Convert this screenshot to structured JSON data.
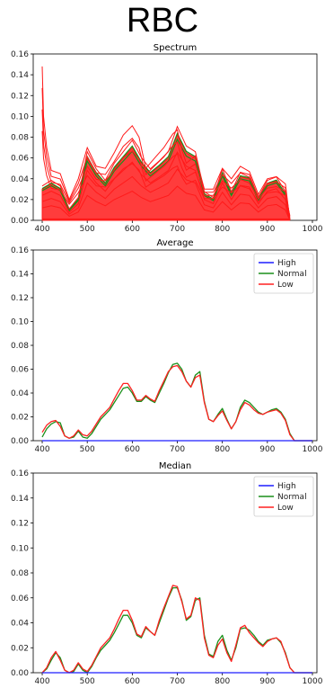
{
  "figure": {
    "title": "RBC"
  },
  "colors": {
    "High": "#1f1fff",
    "Normal": "#1a8f1a",
    "Low": "#ff2020",
    "spectrum_fill": "#ff1a1a"
  },
  "chart_data": [
    {
      "type": "line",
      "title": "Spectrum",
      "xlim": [
        380,
        1010
      ],
      "ylim": [
        0,
        0.16
      ],
      "xticks": [
        400,
        500,
        600,
        700,
        800,
        900,
        1000
      ],
      "yticks": [
        "0.00",
        "0.02",
        "0.04",
        "0.06",
        "0.08",
        "0.10",
        "0.12",
        "0.14",
        "0.16"
      ],
      "legend": null,
      "note_series": "many overlapping individual spectra (mostly red, some green)",
      "upper_envelope": {
        "x": [
          400,
          403,
          410,
          420,
          440,
          460,
          480,
          500,
          520,
          540,
          560,
          580,
          600,
          615,
          630,
          650,
          670,
          690,
          700,
          710,
          720,
          740,
          760,
          780,
          800,
          820,
          840,
          860,
          880,
          900,
          920,
          940,
          950
        ],
        "y": [
          0.148,
          0.1,
          0.07,
          0.048,
          0.045,
          0.02,
          0.04,
          0.07,
          0.052,
          0.05,
          0.065,
          0.082,
          0.091,
          0.08,
          0.05,
          0.06,
          0.07,
          0.083,
          0.087,
          0.068,
          0.055,
          0.062,
          0.03,
          0.03,
          0.05,
          0.04,
          0.052,
          0.047,
          0.025,
          0.04,
          0.042,
          0.035,
          0.0
        ]
      },
      "main_band": {
        "x": [
          400,
          420,
          440,
          460,
          480,
          500,
          520,
          540,
          560,
          580,
          600,
          620,
          640,
          660,
          680,
          700,
          720,
          740,
          760,
          780,
          800,
          820,
          840,
          860,
          880,
          900,
          920,
          940,
          950
        ],
        "y": [
          0.03,
          0.035,
          0.03,
          0.01,
          0.02,
          0.06,
          0.045,
          0.035,
          0.05,
          0.06,
          0.07,
          0.055,
          0.045,
          0.052,
          0.06,
          0.082,
          0.065,
          0.06,
          0.025,
          0.02,
          0.045,
          0.025,
          0.042,
          0.04,
          0.02,
          0.035,
          0.038,
          0.025,
          0.0
        ]
      }
    },
    {
      "type": "line",
      "title": "Average",
      "xlim": [
        380,
        1010
      ],
      "ylim": [
        0,
        0.16
      ],
      "xticks": [
        400,
        500,
        600,
        700,
        800,
        900,
        1000
      ],
      "yticks": [
        "0.00",
        "0.02",
        "0.04",
        "0.06",
        "0.08",
        "0.10",
        "0.12",
        "0.14",
        "0.16"
      ],
      "legend": "top-right",
      "series": [
        {
          "name": "High",
          "x": [
            400,
            1000
          ],
          "y": [
            0.0,
            0.0
          ]
        },
        {
          "name": "Normal",
          "x": [
            400,
            410,
            420,
            430,
            440,
            450,
            460,
            470,
            480,
            490,
            500,
            510,
            520,
            530,
            540,
            550,
            560,
            570,
            580,
            590,
            600,
            610,
            620,
            630,
            640,
            650,
            660,
            670,
            680,
            690,
            700,
            710,
            720,
            730,
            740,
            750,
            760,
            770,
            780,
            790,
            800,
            810,
            820,
            830,
            840,
            850,
            860,
            870,
            880,
            890,
            900,
            910,
            920,
            930,
            940,
            950,
            960,
            1000
          ],
          "y": [
            0.003,
            0.01,
            0.014,
            0.016,
            0.015,
            0.004,
            0.002,
            0.003,
            0.008,
            0.003,
            0.002,
            0.006,
            0.012,
            0.018,
            0.022,
            0.026,
            0.032,
            0.038,
            0.044,
            0.045,
            0.04,
            0.033,
            0.033,
            0.037,
            0.034,
            0.032,
            0.04,
            0.048,
            0.057,
            0.064,
            0.065,
            0.06,
            0.05,
            0.045,
            0.055,
            0.058,
            0.033,
            0.018,
            0.016,
            0.022,
            0.027,
            0.018,
            0.01,
            0.016,
            0.028,
            0.034,
            0.032,
            0.028,
            0.024,
            0.022,
            0.024,
            0.026,
            0.027,
            0.024,
            0.018,
            0.006,
            0.0,
            0.0
          ]
        },
        {
          "name": "Low",
          "x": [
            400,
            410,
            420,
            430,
            440,
            450,
            460,
            470,
            480,
            490,
            500,
            510,
            520,
            530,
            540,
            550,
            560,
            570,
            580,
            590,
            600,
            610,
            620,
            630,
            640,
            650,
            660,
            670,
            680,
            690,
            700,
            710,
            720,
            730,
            740,
            750,
            760,
            770,
            780,
            790,
            800,
            810,
            820,
            830,
            840,
            850,
            860,
            870,
            880,
            890,
            900,
            910,
            920,
            930,
            940,
            950,
            960,
            1000
          ],
          "y": [
            0.007,
            0.013,
            0.016,
            0.017,
            0.012,
            0.004,
            0.002,
            0.004,
            0.009,
            0.005,
            0.004,
            0.008,
            0.014,
            0.02,
            0.024,
            0.028,
            0.035,
            0.042,
            0.048,
            0.048,
            0.042,
            0.034,
            0.034,
            0.038,
            0.035,
            0.033,
            0.042,
            0.05,
            0.058,
            0.062,
            0.063,
            0.058,
            0.05,
            0.045,
            0.053,
            0.055,
            0.032,
            0.018,
            0.016,
            0.021,
            0.025,
            0.017,
            0.01,
            0.016,
            0.026,
            0.032,
            0.03,
            0.026,
            0.023,
            0.022,
            0.024,
            0.025,
            0.026,
            0.023,
            0.017,
            0.005,
            0.0,
            0.0
          ]
        }
      ]
    },
    {
      "type": "line",
      "title": "Median",
      "xlim": [
        380,
        1010
      ],
      "ylim": [
        0,
        0.16
      ],
      "xticks": [
        400,
        500,
        600,
        700,
        800,
        900,
        1000
      ],
      "yticks": [
        "0.00",
        "0.02",
        "0.04",
        "0.06",
        "0.08",
        "0.10",
        "0.12",
        "0.14",
        "0.16"
      ],
      "legend": "top-right",
      "series": [
        {
          "name": "High",
          "x": [
            400,
            1000
          ],
          "y": [
            0.0,
            0.0
          ]
        },
        {
          "name": "Normal",
          "x": [
            400,
            410,
            420,
            430,
            440,
            450,
            460,
            470,
            480,
            490,
            500,
            510,
            520,
            530,
            540,
            550,
            560,
            570,
            580,
            590,
            600,
            610,
            620,
            630,
            640,
            650,
            660,
            670,
            680,
            690,
            700,
            710,
            720,
            730,
            740,
            750,
            760,
            770,
            780,
            790,
            800,
            810,
            820,
            830,
            840,
            850,
            860,
            870,
            880,
            890,
            900,
            910,
            920,
            930,
            940,
            950,
            960,
            1000
          ],
          "y": [
            0.0,
            0.003,
            0.01,
            0.016,
            0.012,
            0.002,
            0.0,
            0.001,
            0.007,
            0.002,
            0.0,
            0.005,
            0.012,
            0.018,
            0.022,
            0.026,
            0.032,
            0.039,
            0.046,
            0.046,
            0.04,
            0.03,
            0.028,
            0.036,
            0.033,
            0.03,
            0.04,
            0.05,
            0.06,
            0.068,
            0.068,
            0.058,
            0.042,
            0.045,
            0.058,
            0.06,
            0.03,
            0.015,
            0.013,
            0.025,
            0.03,
            0.018,
            0.01,
            0.02,
            0.035,
            0.036,
            0.034,
            0.03,
            0.025,
            0.022,
            0.026,
            0.027,
            0.028,
            0.024,
            0.016,
            0.004,
            0.0,
            0.0
          ]
        },
        {
          "name": "Low",
          "x": [
            400,
            410,
            420,
            430,
            440,
            450,
            460,
            470,
            480,
            490,
            500,
            510,
            520,
            530,
            540,
            550,
            560,
            570,
            580,
            590,
            600,
            610,
            620,
            630,
            640,
            650,
            660,
            670,
            680,
            690,
            700,
            710,
            720,
            730,
            740,
            750,
            760,
            770,
            780,
            790,
            800,
            810,
            820,
            830,
            840,
            850,
            860,
            870,
            880,
            890,
            900,
            910,
            920,
            930,
            940,
            950,
            960,
            1000
          ],
          "y": [
            0.0,
            0.004,
            0.012,
            0.017,
            0.01,
            0.002,
            0.0,
            0.002,
            0.008,
            0.003,
            0.001,
            0.006,
            0.013,
            0.02,
            0.024,
            0.028,
            0.035,
            0.043,
            0.05,
            0.05,
            0.042,
            0.031,
            0.029,
            0.037,
            0.033,
            0.03,
            0.042,
            0.052,
            0.061,
            0.07,
            0.069,
            0.057,
            0.043,
            0.046,
            0.06,
            0.058,
            0.028,
            0.014,
            0.012,
            0.022,
            0.027,
            0.016,
            0.009,
            0.022,
            0.036,
            0.038,
            0.032,
            0.028,
            0.024,
            0.021,
            0.025,
            0.027,
            0.028,
            0.025,
            0.015,
            0.004,
            0.0,
            0.0
          ]
        }
      ]
    }
  ]
}
